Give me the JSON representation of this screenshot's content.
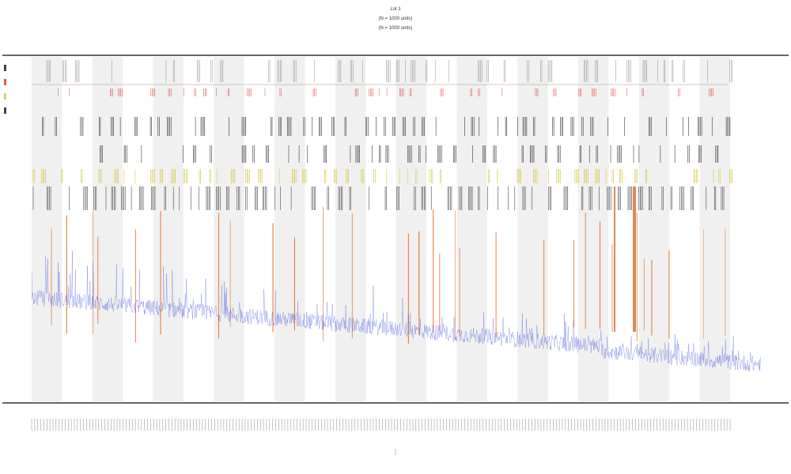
{
  "header": {
    "title": "Lot 1",
    "subtitle_1": "(N = 1000 units)",
    "subtitle_2": "(N = 1000 units)"
  },
  "chart_data": {
    "type": "line",
    "title": "Lot 1",
    "xlabel": "",
    "ylabel": "",
    "grid": false,
    "legend_position": "top-left",
    "series": [
      {
        "name": "",
        "color": "#2f3fd8"
      },
      {
        "name": "",
        "color": "#e8712a"
      },
      {
        "name": "",
        "color": "#d4c63a"
      },
      {
        "name": "",
        "color": "#111111"
      }
    ],
    "band_count": 12,
    "x_tick_count": 230,
    "baseline_start": 0.55,
    "baseline_end": 0.08
  },
  "colors": {
    "band": "#f0f0f0",
    "axis": "#333333",
    "separator": "#999999",
    "blue": "#2f3fd8",
    "orange": "#e8712a",
    "yellow": "#d4c63a",
    "black": "#111111",
    "red": "#e03030"
  }
}
